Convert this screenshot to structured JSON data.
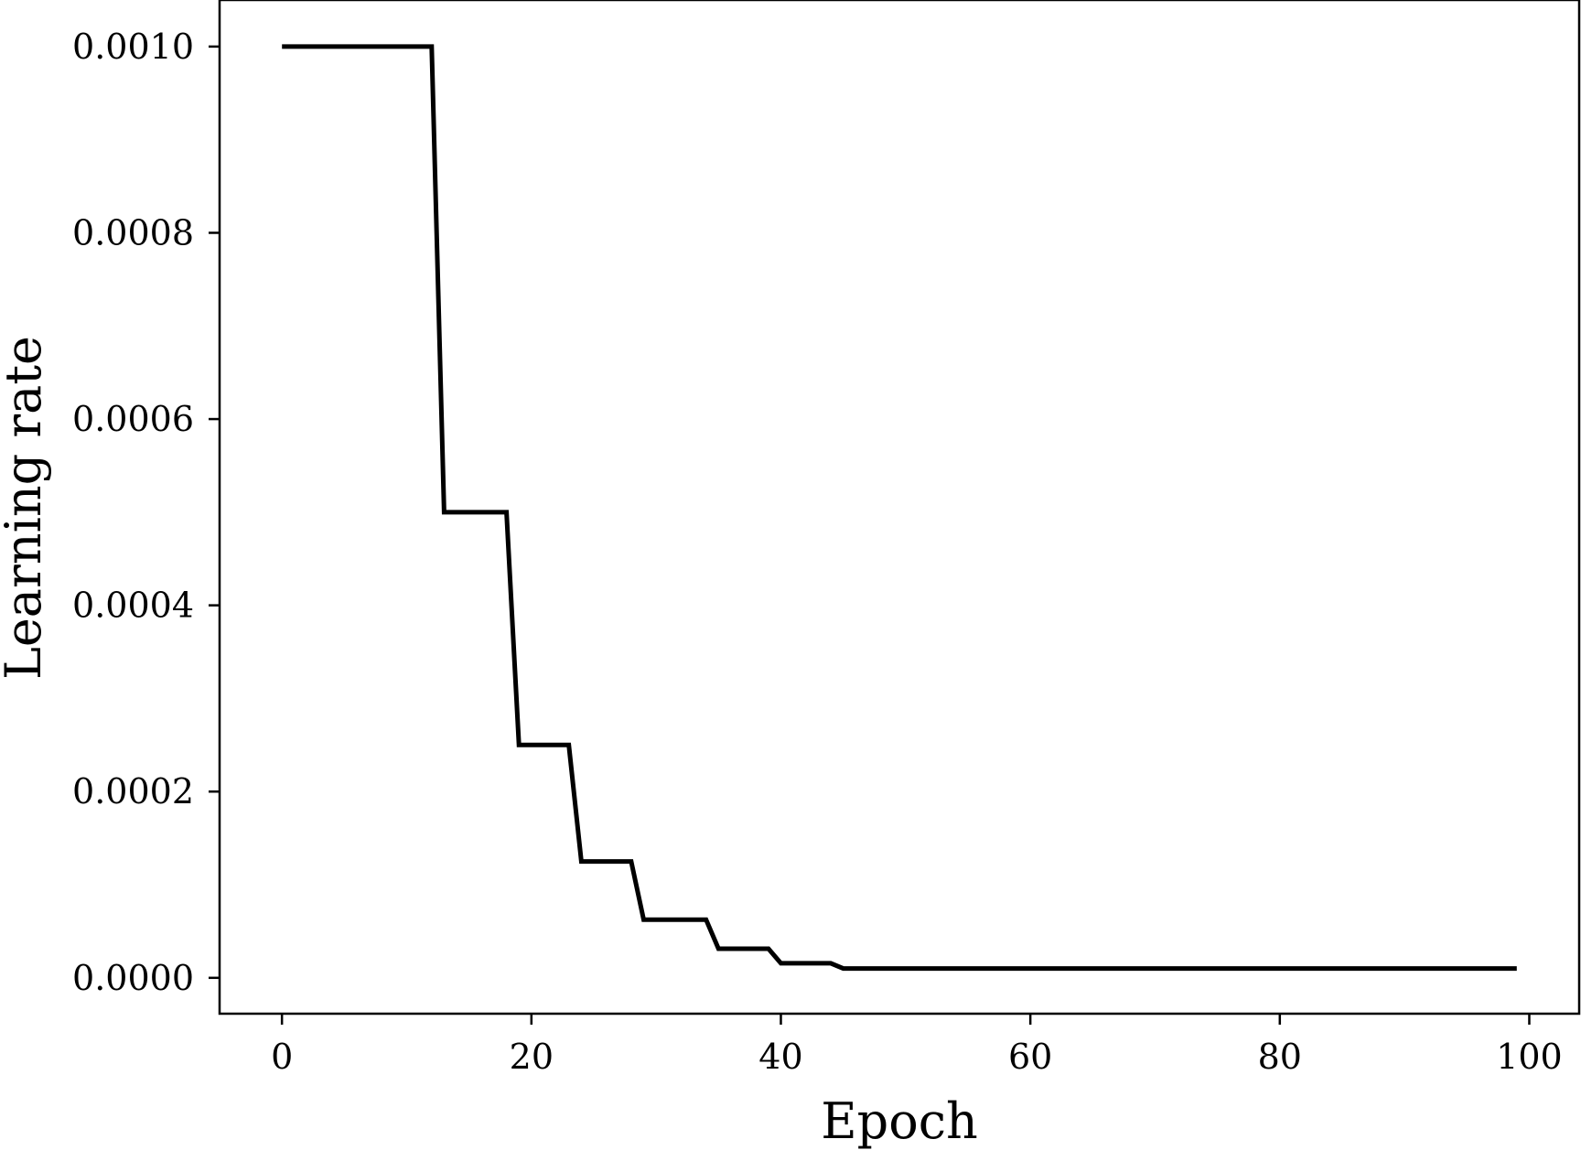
{
  "chart_data": {
    "type": "line",
    "title": "",
    "xlabel": "Epoch",
    "ylabel": "Learning rate",
    "xlim": [
      -5,
      104
    ],
    "ylim": [
      -3.85e-05,
      0.00105
    ],
    "xticks": [
      0,
      20,
      40,
      60,
      80,
      100
    ],
    "xtick_labels": [
      "0",
      "20",
      "40",
      "60",
      "80",
      "100"
    ],
    "yticks": [
      0.0,
      0.0002,
      0.0004,
      0.0006,
      0.0008,
      0.001
    ],
    "ytick_labels": [
      "0.0000",
      "0.0002",
      "0.0004",
      "0.0006",
      "0.0008",
      "0.0010"
    ],
    "grid": false,
    "line_color": "#000000",
    "series": [
      {
        "x": [
          0,
          12,
          13,
          18,
          19,
          23,
          24,
          28,
          29,
          34,
          35,
          39,
          40,
          44,
          45,
          99
        ],
        "values": [
          0.001,
          0.001,
          0.0005,
          0.0005,
          0.00025,
          0.00025,
          0.000125,
          0.000125,
          6.25e-05,
          6.25e-05,
          3.125e-05,
          3.125e-05,
          1.5625e-05,
          1.5625e-05,
          1e-05,
          1e-05
        ]
      }
    ]
  }
}
